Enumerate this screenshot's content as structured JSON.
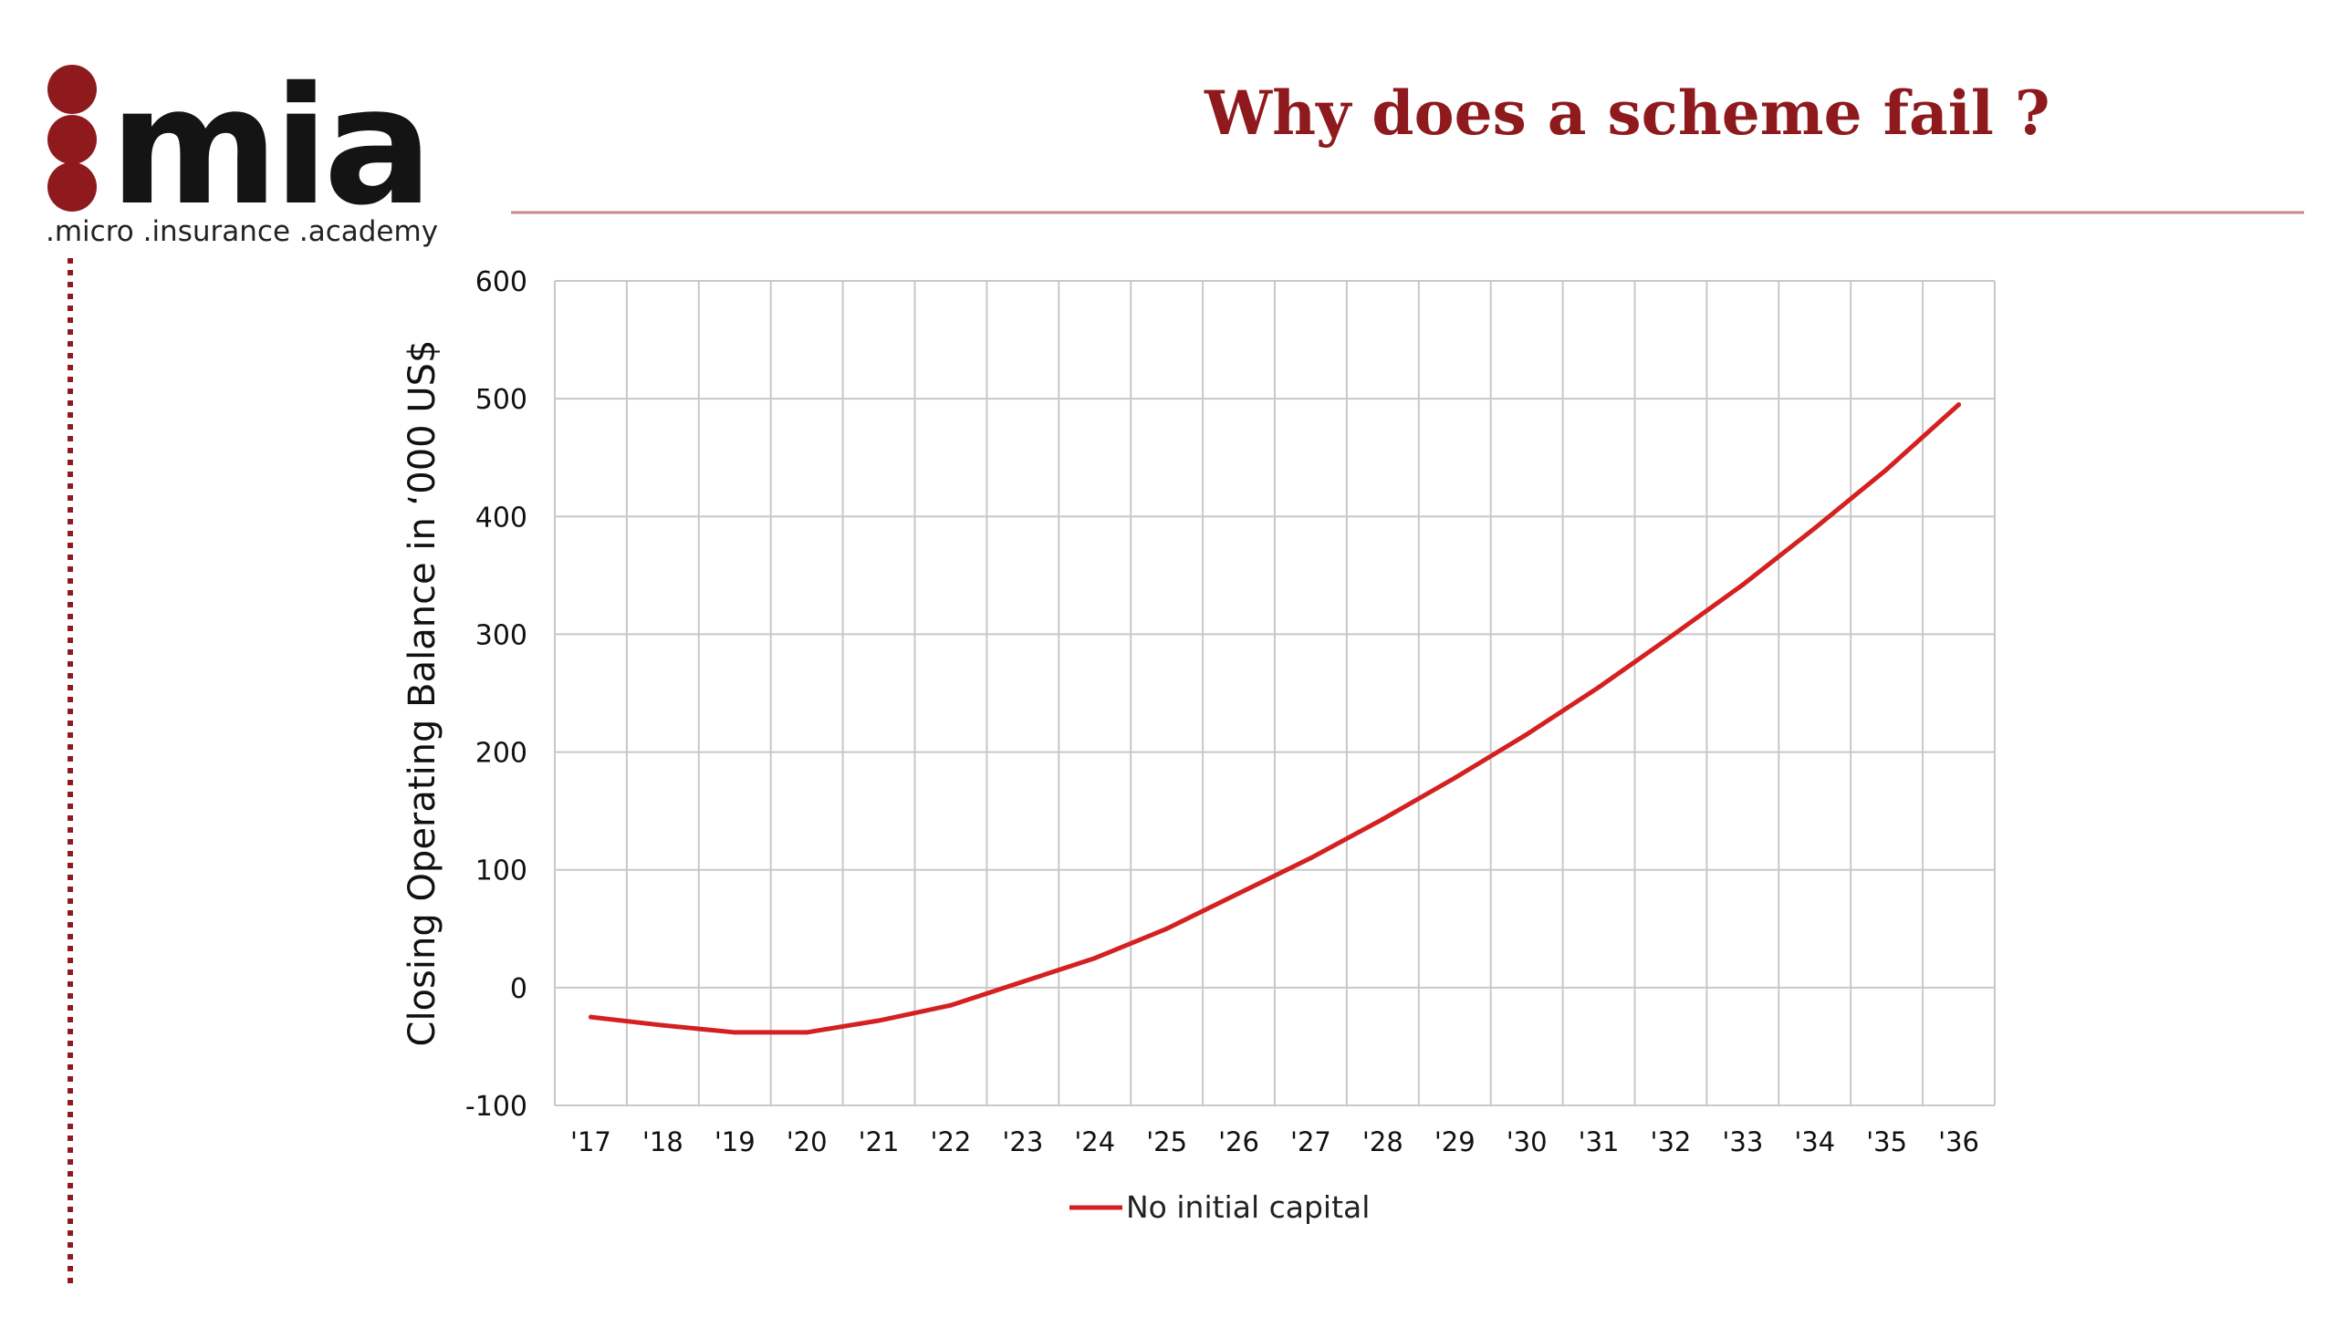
{
  "header": {
    "logo": {
      "wordmark": "mia",
      "tagline": ".micro .insurance .academy"
    },
    "title": "Why does a scheme fail ?"
  },
  "colors": {
    "accent": "#8e1a1e",
    "line": "#d42020",
    "rule": "#c9888a",
    "grid": "#c8c8c8"
  },
  "chart_data": {
    "type": "line",
    "title": "",
    "xlabel": "",
    "ylabel": "Closing Operating Balance in ‘000 US$",
    "categories": [
      "'17",
      "'18",
      "'19",
      "'20",
      "'21",
      "'22",
      "'23",
      "'24",
      "'25",
      "'26",
      "'27",
      "'28",
      "'29",
      "'30",
      "'31",
      "'32",
      "'33",
      "'34",
      "'35",
      "'36"
    ],
    "yticks": [
      "600",
      "500",
      "400",
      "300",
      "200",
      "100",
      "0",
      "-100"
    ],
    "ylim": [
      -100,
      600
    ],
    "grid": true,
    "legend_position": "bottom-center",
    "series": [
      {
        "name": "No initial capital",
        "values": [
          -25,
          -32,
          -38,
          -38,
          -28,
          -15,
          5,
          25,
          50,
          80,
          110,
          143,
          178,
          215,
          255,
          298,
          342,
          390,
          440,
          495
        ]
      }
    ]
  }
}
